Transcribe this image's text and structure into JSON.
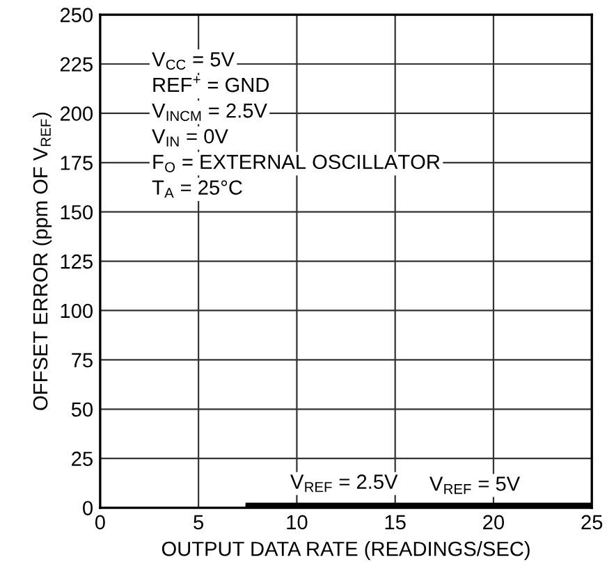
{
  "chart_data": {
    "type": "line",
    "xlabel": "OUTPUT DATA RATE (READINGS/SEC)",
    "ylabel": "OFFSET ERROR (ppm OF V$_{REF}$)",
    "x": [
      7.5,
      25
    ],
    "series": [
      {
        "name": "V$_{REF}$ = 2.5V",
        "color": "#000000",
        "values": [
          1.5,
          1.5
        ]
      },
      {
        "name": "V$_{REF}$ = 5V",
        "color": "#000000",
        "values": [
          0.5,
          0.5
        ]
      }
    ],
    "annotations": [
      "V$_{CC}$ = 5V",
      "REF$^{+}$ = GND",
      "V$_{INCM}$ = 2.5V",
      "V$_{IN}$ = 0V",
      "F$_{O}$ = EXTERNAL OSCILLATOR",
      "T$_{A}$ = 25°C"
    ],
    "xlim": [
      0,
      25
    ],
    "xticks": [
      0,
      5,
      10,
      15,
      20,
      25
    ],
    "ylim": [
      0,
      250
    ],
    "yticks": [
      0,
      25,
      50,
      75,
      100,
      125,
      150,
      175,
      200,
      225,
      250
    ],
    "grid": true,
    "legend": false,
    "marker": "none",
    "line_style": "solid"
  }
}
